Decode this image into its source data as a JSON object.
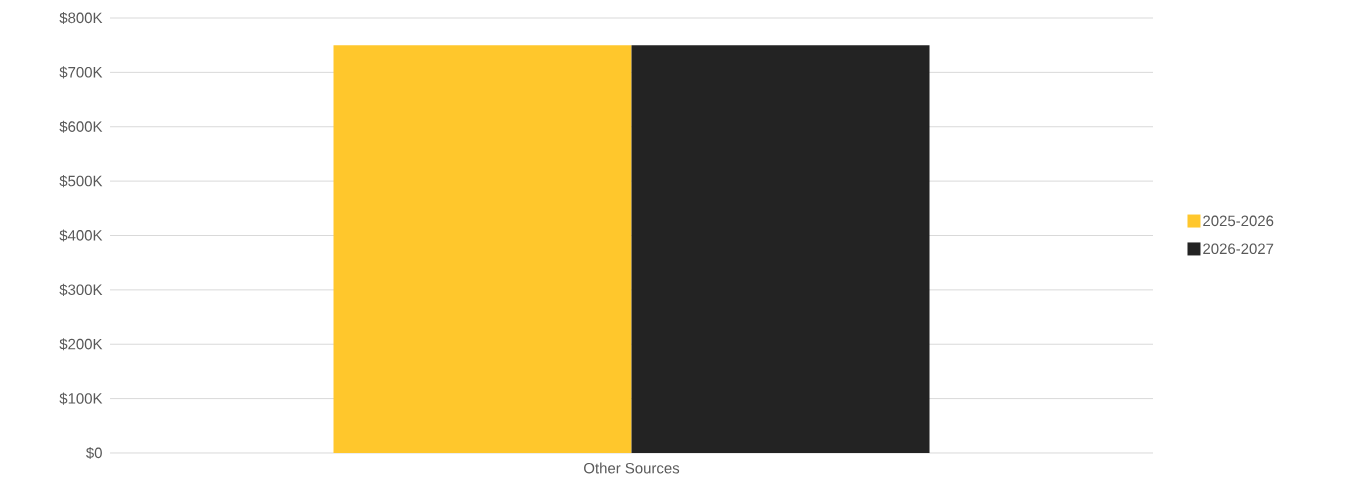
{
  "chart_data": {
    "type": "bar",
    "categories": [
      "Other Sources"
    ],
    "series": [
      {
        "name": "2025-2026",
        "color": "#ffc72c",
        "values": [
          750000
        ]
      },
      {
        "name": "2026-2027",
        "color": "#232323",
        "values": [
          750000
        ]
      }
    ],
    "ylim": [
      0,
      800000
    ],
    "yticks": [
      {
        "value": 0,
        "label": "$0"
      },
      {
        "value": 100000,
        "label": "$100K"
      },
      {
        "value": 200000,
        "label": "$200K"
      },
      {
        "value": 300000,
        "label": "$300K"
      },
      {
        "value": 400000,
        "label": "$400K"
      },
      {
        "value": 500000,
        "label": "$500K"
      },
      {
        "value": 600000,
        "label": "$600K"
      },
      {
        "value": 700000,
        "label": "$700K"
      },
      {
        "value": 800000,
        "label": "$800K"
      }
    ],
    "grid": "y",
    "legend": "right"
  }
}
